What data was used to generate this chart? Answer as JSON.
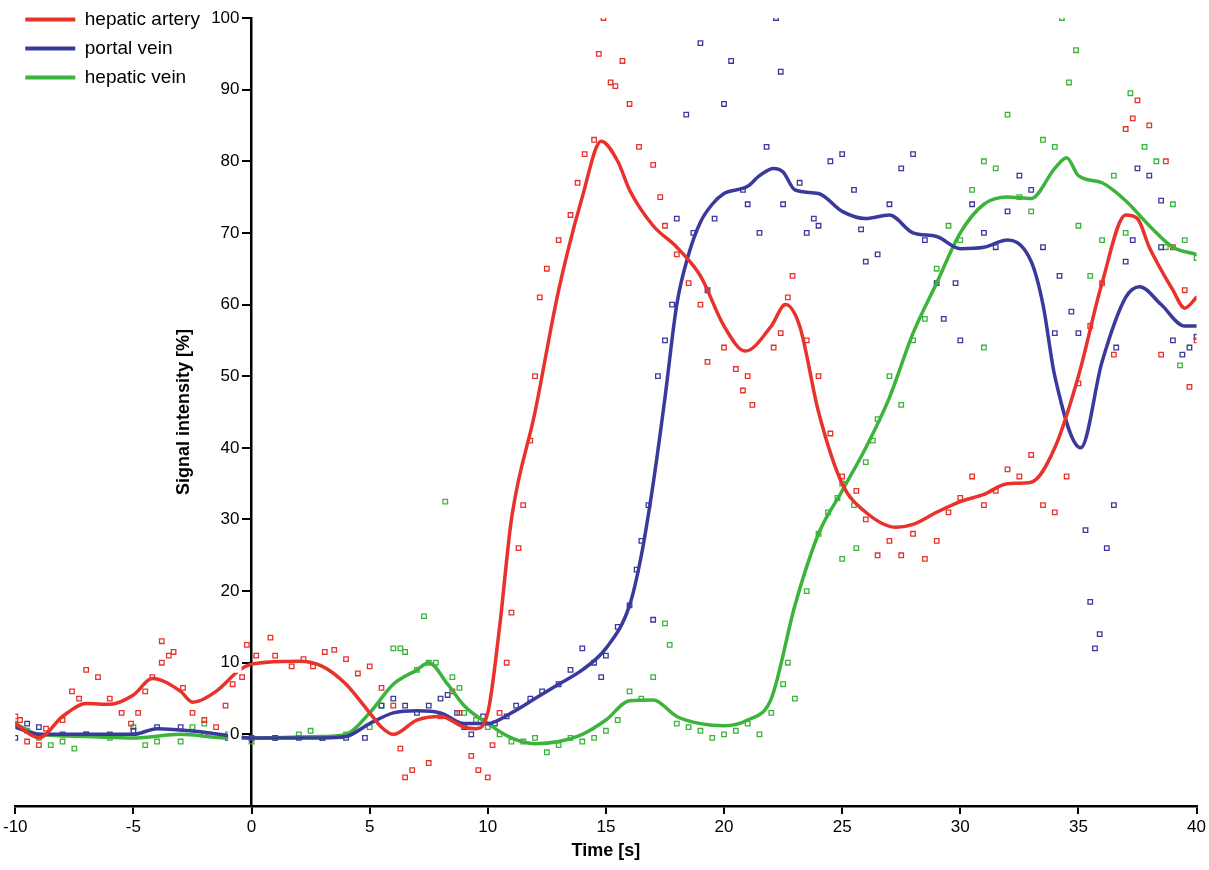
{
  "chart_data": {
    "type": "scatter",
    "xlabel": "Time [s]",
    "ylabel": "Signal intensity [%]",
    "xlim": [
      -10,
      40
    ],
    "ylim": [
      -10,
      100
    ],
    "xticks": [
      -10,
      -5,
      0,
      5,
      10,
      15,
      20,
      25,
      30,
      35,
      40
    ],
    "yticks": [
      0,
      10,
      20,
      30,
      40,
      50,
      60,
      70,
      80,
      90,
      100
    ],
    "grid": false,
    "legend": "top left",
    "series": [
      {
        "type": "scatter",
        "marker": "square",
        "color": "#e8322c",
        "x": [
          -10,
          -9.8,
          -9.5,
          -9,
          -8.7,
          -8,
          -7.6,
          -7.3,
          -7,
          -6.5,
          -6,
          -5.5,
          -5.1,
          -4.8,
          -4.5,
          -4.2,
          -3.8,
          -3.5,
          -3.3,
          -3.8,
          -2.9,
          -2.5,
          -2,
          -1.5,
          -1.1,
          -0.8,
          -0.4,
          -0.2,
          0.2,
          0.8,
          1,
          1.7,
          2.2,
          2.6,
          3.1,
          3.5,
          4,
          4.5,
          5,
          5.5,
          6,
          6.3,
          6.5,
          6.8,
          7.5,
          8,
          8.5,
          8.8,
          9.3,
          9.6,
          10,
          10.2,
          10.5,
          10.8,
          11,
          11.3,
          11.5,
          11.8,
          12,
          12.2,
          12.5,
          13,
          13.5,
          13.8,
          14.1,
          14.5,
          14.9,
          14.7,
          15.2,
          15.4,
          15.7,
          16,
          16.4,
          17,
          17.3,
          17.5,
          18,
          18.5,
          19,
          19.3,
          20,
          20.5,
          20.8,
          21,
          21.2,
          22.1,
          22.4,
          22.7,
          22.9,
          23.5,
          24,
          24.5,
          25,
          25.6,
          26,
          26.5,
          27,
          27.5,
          28,
          28.5,
          29,
          29.5,
          30,
          30.5,
          31,
          31.5,
          32,
          32.5,
          33,
          33.5,
          34,
          34.5,
          35,
          35.5,
          36,
          37,
          37.3,
          37.5,
          38,
          38.7,
          39,
          39.5,
          40,
          39.7,
          38.5,
          36.5
        ],
        "values": [
          2.5,
          2,
          -1,
          -1.5,
          0.8,
          2,
          6,
          5,
          9,
          8,
          5,
          3,
          1.5,
          3,
          6,
          8,
          10,
          11,
          11.5,
          13,
          6.5,
          3,
          2,
          1,
          4,
          7,
          8,
          12.5,
          11,
          13.5,
          11,
          9.5,
          10.5,
          9.5,
          11.5,
          11.8,
          10.5,
          8.5,
          9.5,
          6.5,
          4,
          -2,
          -6,
          -5,
          -4,
          2.5,
          6,
          3,
          -3,
          -5,
          -6,
          -1.5,
          3,
          10,
          17,
          26,
          32,
          41,
          50,
          61,
          65,
          69,
          72.5,
          77,
          81,
          83,
          100,
          95,
          91,
          90.5,
          94,
          88,
          82,
          79.5,
          75,
          71,
          67,
          63,
          60,
          52,
          54,
          51,
          48,
          50,
          46,
          54,
          56,
          61,
          64,
          55,
          50,
          42,
          36,
          34,
          30,
          25,
          27,
          25,
          28,
          24.5,
          27,
          31,
          33,
          36,
          32,
          34,
          37,
          36,
          39,
          32,
          31,
          36,
          49,
          57,
          63,
          84.5,
          86,
          88.5,
          85,
          80,
          68,
          62,
          55,
          48.5,
          53,
          53
        ]
      },
      {
        "type": "scatter",
        "marker": "square",
        "color": "#3a3a9c",
        "x": [
          -10,
          -9.5,
          -9,
          -8,
          -7,
          -6,
          -5,
          -4,
          -3,
          -2,
          -1,
          0,
          1,
          2,
          3,
          4,
          4.8,
          5.5,
          6,
          6.5,
          7,
          7.5,
          8,
          8.3,
          8.7,
          9,
          9.3,
          9.8,
          10.3,
          10.8,
          11.2,
          11.8,
          12.3,
          13,
          13.5,
          14,
          14.5,
          14.8,
          15,
          15.5,
          16,
          16.3,
          16.5,
          16.8,
          17,
          17.2,
          17.5,
          17.8,
          18,
          18.4,
          18.7,
          19,
          19.3,
          19.6,
          20,
          20.3,
          20.8,
          21,
          21.5,
          21.8,
          22.2,
          22.4,
          22.5,
          23.2,
          23.5,
          23.8,
          24,
          24.5,
          25,
          25.5,
          25.8,
          26,
          26.5,
          27,
          27.5,
          28,
          28.5,
          29,
          29.3,
          29.8,
          30,
          30.5,
          31,
          31.5,
          32,
          32.5,
          33,
          33.5,
          34,
          34.2,
          34.7,
          35,
          35.3,
          35.5,
          35.7,
          35.9,
          36.2,
          36.5,
          36.6,
          37,
          37.5,
          38,
          38.5,
          39,
          39.4,
          39.7,
          40,
          38.5,
          37.3
        ],
        "values": [
          -0.5,
          1.5,
          1,
          0,
          0,
          0,
          0.5,
          1,
          1,
          0,
          -0.5,
          -0.5,
          -0.5,
          -0.5,
          -0.5,
          -0.5,
          -0.5,
          4,
          5,
          4,
          3,
          4,
          5,
          5.5,
          3,
          1,
          0,
          2.5,
          1.5,
          2.5,
          4,
          5,
          6,
          7,
          9,
          12,
          10,
          8,
          11,
          15,
          18,
          23,
          27,
          32,
          16,
          50,
          55,
          60,
          72,
          86.5,
          70,
          96.5,
          62,
          72,
          88,
          94,
          76,
          74,
          70,
          82,
          100,
          92.5,
          74,
          77,
          70,
          72,
          71,
          80,
          81,
          76,
          70.5,
          66,
          67,
          74,
          79,
          81,
          69,
          63,
          58,
          63,
          55,
          74,
          70,
          68,
          73,
          78,
          76,
          68,
          56,
          64,
          59,
          56,
          28.5,
          18.5,
          12,
          14,
          26,
          32,
          54,
          66,
          79,
          78,
          74.5,
          55,
          53,
          54,
          55.5,
          68,
          69
        ]
      },
      {
        "type": "scatter",
        "marker": "square",
        "color": "#3cb43c",
        "x": [
          -10,
          -9.5,
          -9,
          -8.5,
          -8,
          -7.5,
          -7,
          -6,
          -5,
          -4.5,
          -4,
          -3,
          -2.5,
          -2,
          -1,
          0,
          1,
          2,
          2.5,
          3,
          4,
          5,
          5.5,
          6,
          6.3,
          6.5,
          7,
          7.5,
          7.3,
          7.8,
          8.2,
          8.5,
          8.8,
          9,
          9.5,
          10,
          10.5,
          11,
          11.5,
          12,
          12.5,
          13,
          13.5,
          14,
          14.5,
          15,
          15.5,
          16,
          16.5,
          17,
          17.5,
          17.7,
          18,
          18.5,
          19,
          19.5,
          20,
          20.5,
          21,
          21.5,
          22,
          22.5,
          22.7,
          23,
          23.5,
          24,
          24.4,
          24.8,
          25,
          25.5,
          26,
          26.3,
          26.5,
          27,
          27.5,
          28,
          28.5,
          29,
          29.5,
          30,
          30.5,
          31,
          31.5,
          32,
          32.5,
          33,
          33.5,
          34,
          34.3,
          34.6,
          34.9,
          35,
          35.5,
          36,
          36.5,
          37,
          37.2,
          37.8,
          38.3,
          38.7,
          39,
          39.5,
          40,
          39.3,
          31,
          25.6,
          25
        ],
        "values": [
          1.5,
          0.5,
          -0.5,
          -1.5,
          -1,
          -2,
          0,
          -0.5,
          1,
          -1.5,
          -1,
          -1,
          1,
          1.5,
          0,
          -1,
          -0.5,
          0,
          0.5,
          -0.5,
          0,
          1,
          4,
          12,
          12,
          11.5,
          9,
          10,
          16.5,
          10,
          32.5,
          8,
          6.5,
          3,
          2,
          1,
          0,
          -1,
          -1,
          -0.5,
          -2.5,
          -1.5,
          -0.5,
          -1,
          -0.5,
          0.5,
          2,
          6,
          5,
          8,
          15.5,
          12.5,
          1.5,
          1,
          0.5,
          -0.5,
          0,
          0.5,
          1.5,
          0,
          3,
          7,
          10,
          5,
          20,
          28,
          31,
          33,
          35,
          32,
          38,
          41,
          44,
          50,
          46,
          55,
          58,
          65,
          71,
          69,
          76,
          80,
          79,
          86.5,
          75,
          73,
          83,
          82,
          100,
          91,
          95.5,
          71,
          64,
          69,
          78,
          70,
          89.5,
          82,
          80,
          68,
          74,
          69,
          66.5,
          51.5,
          54,
          26,
          24.5
        ]
      },
      {
        "type": "line",
        "marker": "none",
        "name": "hepatic artery",
        "color": "#e8322c",
        "x": [
          -10,
          -9,
          -8,
          -7,
          -6,
          -5,
          -4.2,
          -3,
          -2.5,
          -1.5,
          -0.5,
          0,
          2,
          3,
          4,
          5,
          5.5,
          6,
          7,
          8,
          9,
          9.5,
          10,
          10.5,
          11,
          12,
          13,
          14,
          14.8,
          15.5,
          16,
          17,
          18,
          19,
          20,
          20.9,
          22,
          22.6,
          23.2,
          24,
          25,
          26,
          27.3,
          28,
          29,
          30,
          31,
          32,
          33,
          34,
          35,
          36,
          37,
          37.5,
          38,
          39,
          39.5,
          40
        ],
        "values": [
          1.5,
          -0.5,
          2.5,
          4.3,
          4.2,
          5.5,
          7.8,
          6,
          4.5,
          6,
          9,
          9.8,
          10.2,
          9.5,
          7,
          3,
          1,
          0,
          2,
          2.5,
          1,
          0.8,
          3,
          15,
          30,
          45,
          62,
          75,
          82.8,
          80,
          76,
          71,
          68,
          64,
          57,
          53.5,
          57,
          60,
          57,
          45,
          35,
          31,
          28.9,
          29.3,
          31,
          32.5,
          33.5,
          35,
          35.2,
          40,
          50,
          63,
          72.5,
          72,
          68,
          62,
          59.5,
          61
        ]
      },
      {
        "type": "line",
        "marker": "none",
        "name": "portal vein",
        "color": "#3a3a9c",
        "x": [
          -10,
          -9,
          -5,
          -4,
          -2,
          0,
          3,
          4,
          5,
          6,
          7,
          8,
          9,
          10,
          11,
          12,
          13,
          14,
          15,
          16,
          16.5,
          17,
          17.5,
          18,
          18.5,
          19,
          19.5,
          20,
          21,
          21.5,
          22.1,
          22.5,
          23,
          24,
          25,
          26,
          27,
          28,
          29,
          30,
          31,
          32,
          33,
          33.5,
          34,
          35.1,
          36,
          37,
          37.6,
          38.5,
          39.5,
          40
        ],
        "values": [
          1,
          0,
          0,
          0.8,
          0.3,
          -0.5,
          -0.5,
          -0.3,
          1.5,
          3,
          3.3,
          3,
          1.5,
          1.5,
          3,
          5,
          7,
          9,
          12,
          18,
          25,
          35,
          47,
          60,
          67,
          71.5,
          74,
          75.5,
          76.5,
          78,
          79,
          78.5,
          76,
          75.5,
          73,
          72,
          72.5,
          70,
          69.5,
          67.8,
          68,
          69,
          66,
          60,
          50,
          40,
          52,
          61,
          62.5,
          60,
          57,
          57
        ]
      },
      {
        "type": "line",
        "marker": "none",
        "name": "hepatic vein",
        "color": "#3cb43c",
        "x": [
          -10,
          -9,
          -7,
          -5,
          -3,
          -1,
          0,
          3,
          4,
          5,
          6,
          7,
          7.5,
          8.3,
          9,
          10,
          11,
          12,
          13,
          14,
          15,
          16,
          17,
          18,
          19,
          20,
          21,
          22,
          23,
          24,
          25,
          26,
          27,
          28,
          29,
          30,
          31,
          32,
          33,
          34,
          34.5,
          35,
          36,
          37,
          38,
          39,
          40
        ],
        "values": [
          1.5,
          0,
          -0.3,
          -0.5,
          0,
          -0.5,
          -0.5,
          -0.3,
          0,
          3,
          7,
          9,
          10,
          7,
          4,
          1.5,
          -0.5,
          -1.3,
          -1,
          0,
          2,
          4.7,
          4.8,
          2.5,
          1.5,
          1.2,
          2,
          5,
          18,
          28,
          34,
          40,
          47,
          56,
          63,
          70,
          74,
          75,
          74.8,
          79,
          80.5,
          78,
          77,
          74.5,
          71,
          68,
          67
        ]
      }
    ]
  }
}
